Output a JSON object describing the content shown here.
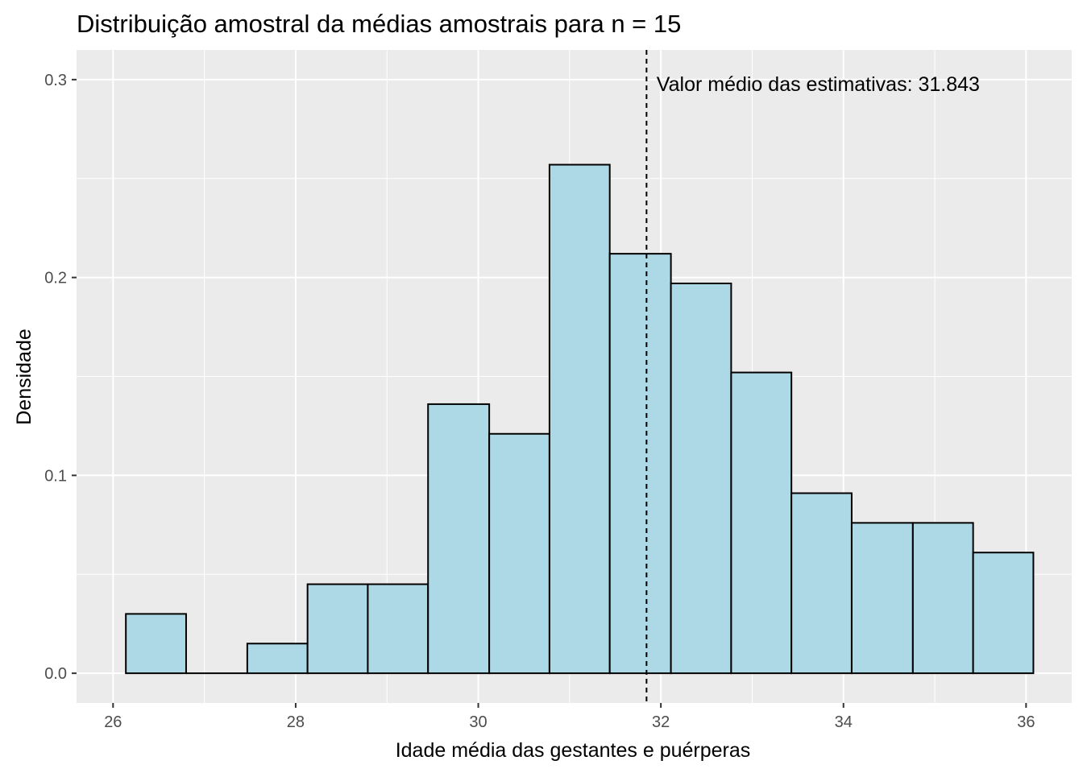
{
  "chart_data": {
    "type": "histogram",
    "title": "Distribuição amostral da médias amostrais para n = 15",
    "xlabel": "Idade média das gestantes e puérperas",
    "ylabel": "Densidade",
    "xlim": [
      25.6,
      36.5
    ],
    "ylim": [
      -0.015,
      0.315
    ],
    "x_ticks": [
      26,
      28,
      30,
      32,
      34,
      36
    ],
    "y_ticks": [
      0.0,
      0.1,
      0.2,
      0.3
    ],
    "x_tick_labels": [
      "26",
      "28",
      "30",
      "32",
      "34",
      "36"
    ],
    "y_tick_labels": [
      "0.0",
      "0.1",
      "0.2",
      "0.3"
    ],
    "bins": [
      {
        "x0": 26.14,
        "x1": 26.8,
        "density": 0.03
      },
      {
        "x0": 26.8,
        "x1": 27.47,
        "density": 0.0
      },
      {
        "x0": 27.47,
        "x1": 28.13,
        "density": 0.015
      },
      {
        "x0": 28.13,
        "x1": 28.79,
        "density": 0.045
      },
      {
        "x0": 28.79,
        "x1": 29.45,
        "density": 0.045
      },
      {
        "x0": 29.45,
        "x1": 30.12,
        "density": 0.136
      },
      {
        "x0": 30.12,
        "x1": 30.78,
        "density": 0.121
      },
      {
        "x0": 30.78,
        "x1": 31.44,
        "density": 0.257
      },
      {
        "x0": 31.44,
        "x1": 32.11,
        "density": 0.212
      },
      {
        "x0": 32.11,
        "x1": 32.77,
        "density": 0.197
      },
      {
        "x0": 32.77,
        "x1": 33.43,
        "density": 0.152
      },
      {
        "x0": 33.43,
        "x1": 34.09,
        "density": 0.091
      },
      {
        "x0": 34.09,
        "x1": 34.76,
        "density": 0.076
      },
      {
        "x0": 34.76,
        "x1": 35.42,
        "density": 0.076
      },
      {
        "x0": 35.42,
        "x1": 36.08,
        "density": 0.061
      }
    ],
    "mean_line": {
      "x": 31.843,
      "style": "dashed",
      "color": "#000000"
    },
    "annotation": {
      "text": "Valor médio das estimativas: 31.843",
      "x": 31.9,
      "y": 0.298
    },
    "colors": {
      "bar_fill": "#add8e6",
      "bar_stroke": "#000000",
      "panel": "#ebebeb",
      "grid": "#ffffff"
    },
    "grid": true,
    "legend": "none"
  }
}
